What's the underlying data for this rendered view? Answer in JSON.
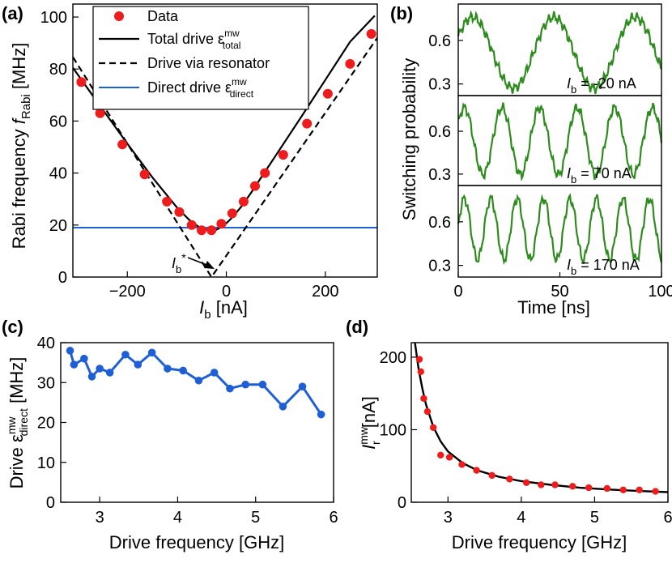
{
  "chart_data": [
    {
      "panel": "(a)",
      "type": "scatter",
      "xlabel_main": "I",
      "xlabel_sub": "b",
      "xlabel_unit": " [nA]",
      "ylabel_main": "Rabi frequency ",
      "ylabel_var": "f",
      "ylabel_sub": "Rabi",
      "ylabel_unit": " [MHz]",
      "xlim": [
        -310,
        305
      ],
      "ylim": [
        0,
        105
      ],
      "xticks": [
        -200,
        0,
        200
      ],
      "yticks": [
        0,
        20,
        40,
        60,
        80,
        100
      ],
      "legend": {
        "data": "Data",
        "total_main": "Total drive ε",
        "total_sup": "mw",
        "total_sub": "total",
        "resonator": "Drive via resonator",
        "direct_main": "Direct drive ε",
        "direct_sup": "mw",
        "direct_sub": "direct"
      },
      "annotation_main": "I",
      "annotation_sub": "b",
      "annotation_sup": "*",
      "data": {
        "x": [
          -293,
          -255,
          -210,
          -165,
          -120,
          -95,
          -70,
          -50,
          -30,
          -10,
          12,
          35,
          58,
          78,
          115,
          163,
          205,
          250,
          293
        ],
        "y": [
          75,
          63,
          51,
          39.5,
          29,
          25,
          20,
          18,
          18,
          20.5,
          24.5,
          29,
          35,
          40,
          47,
          59,
          70.5,
          82,
          93.5
        ]
      },
      "total_drive_curve": {
        "x": [
          -310,
          -250,
          -200,
          -150,
          -100,
          -75,
          -55,
          -40,
          -30,
          -20,
          -5,
          10,
          30,
          50,
          75,
          100,
          150,
          200,
          250,
          300
        ],
        "y": [
          80.5,
          64.5,
          51.3,
          38.5,
          26.8,
          22,
          19.2,
          18.2,
          18,
          18.2,
          19.8,
          22.5,
          27,
          32.4,
          39.6,
          46.8,
          61.2,
          75.8,
          90.5,
          100.5
        ]
      },
      "resonator_drive_curve": {
        "x": [
          -310,
          -30,
          -30,
          305
        ],
        "y": [
          84.6,
          0,
          0,
          92
        ]
      },
      "direct_drive_value": 19
    },
    {
      "panel": "(b)",
      "type": "line",
      "xlabel": "Time [ns]",
      "ylabel": "Switching probability",
      "xlim": [
        0,
        100
      ],
      "xticks": [
        0,
        50,
        100
      ],
      "ylim": [
        0.22,
        0.85
      ],
      "yticks": [
        0.3,
        0.6
      ],
      "subplots": [
        {
          "label_main": "I",
          "label_sub": "b",
          "label_rest": " = -20 nA",
          "period": 40,
          "phase": 7,
          "amplitude": 0.245,
          "center": 0.515
        },
        {
          "label_main": "I",
          "label_sub": "b",
          "label_rest": " = 70 nA",
          "period": 18.5,
          "phase": 3,
          "amplitude": 0.235,
          "center": 0.53
        },
        {
          "label_main": "I",
          "label_sub": "b",
          "label_rest": " = 170 nA",
          "period": 13,
          "phase": 3,
          "amplitude": 0.21,
          "center": 0.55
        }
      ]
    },
    {
      "panel": "(c)",
      "type": "line",
      "xlabel": "Drive frequency [GHz]",
      "ylabel_main": "Drive ε",
      "ylabel_sup": "mw",
      "ylabel_sub": "direct",
      "ylabel_unit": " [MHz]",
      "xlim": [
        2.5,
        6
      ],
      "ylim": [
        0,
        40
      ],
      "xticks": [
        3,
        4,
        5,
        6
      ],
      "yticks": [
        0,
        10,
        20,
        30,
        40
      ],
      "x": [
        2.62,
        2.67,
        2.8,
        2.9,
        3.0,
        3.13,
        3.33,
        3.49,
        3.67,
        3.87,
        4.07,
        4.27,
        4.47,
        4.67,
        4.87,
        5.09,
        5.35,
        5.6,
        5.84
      ],
      "y": [
        38,
        34.5,
        36,
        31.5,
        33.5,
        32.5,
        37,
        34.5,
        37.5,
        33.5,
        33,
        30.5,
        32.5,
        28.5,
        29.5,
        29.5,
        24,
        29,
        22
      ]
    },
    {
      "panel": "(d)",
      "type": "scatter",
      "xlabel": "Drive frequency [GHz]",
      "ylabel_main": "I",
      "ylabel_sup": "mw",
      "ylabel_sub": "r",
      "ylabel_unit": " [nA]",
      "xlim": [
        2.5,
        6
      ],
      "ylim": [
        0,
        220
      ],
      "xticks": [
        3,
        4,
        5,
        6
      ],
      "yticks": [
        0,
        100,
        200
      ],
      "x": [
        2.61,
        2.63,
        2.67,
        2.72,
        2.8,
        2.9,
        3.02,
        3.19,
        3.39,
        3.6,
        3.84,
        4.07,
        4.27,
        4.46,
        4.7,
        4.92,
        5.17,
        5.39,
        5.61,
        5.83
      ],
      "y": [
        197,
        180,
        143,
        125,
        103,
        65,
        62,
        52,
        44,
        37,
        32,
        27,
        24,
        24,
        22,
        20,
        19,
        17,
        17,
        15
      ],
      "fit_curve": {
        "x": [
          2.55,
          2.6,
          2.65,
          2.7,
          2.8,
          2.9,
          3.0,
          3.2,
          3.4,
          3.7,
          4.0,
          4.4,
          4.8,
          5.2,
          5.6,
          6.0
        ],
        "y": [
          220,
          183,
          157,
          135,
          104,
          84,
          70,
          54,
          44,
          35,
          29,
          24,
          20,
          17.5,
          15.5,
          14
        ]
      }
    }
  ]
}
